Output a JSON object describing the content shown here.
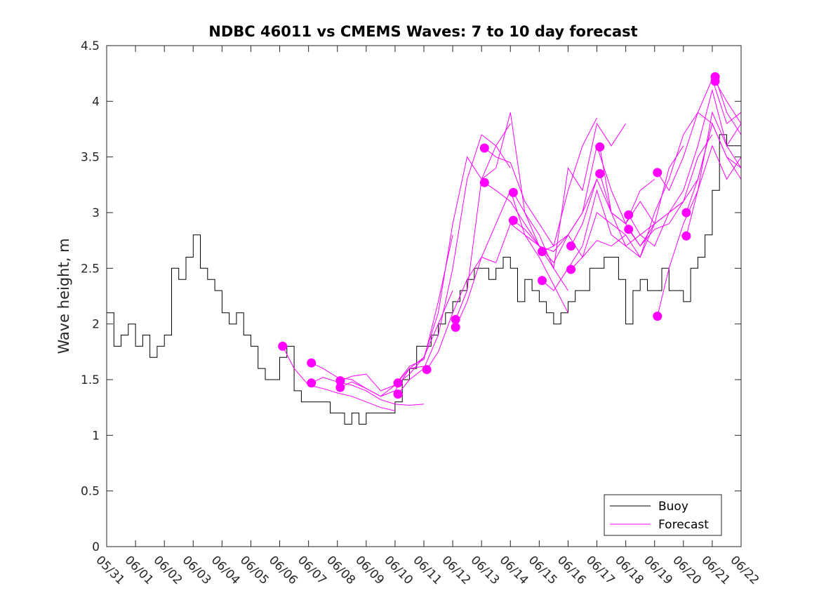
{
  "chart_data": {
    "type": "line",
    "title": "NDBC 46011 vs CMEMS Waves: 7 to 10 day forecast",
    "xlabel": "",
    "ylabel": "Wave height, m",
    "x_ticks": [
      "05/31",
      "06/01",
      "06/02",
      "06/03",
      "06/04",
      "06/05",
      "06/06",
      "06/07",
      "06/08",
      "06/09",
      "06/10",
      "06/11",
      "06/12",
      "06/13",
      "06/14",
      "06/15",
      "06/16",
      "06/17",
      "06/18",
      "06/19",
      "06/20",
      "06/21",
      "06/22"
    ],
    "y_ticks": [
      "0",
      "0.5",
      "1",
      "1.5",
      "2",
      "2.5",
      "3",
      "3.5",
      "4",
      "4.5"
    ],
    "xlim_days": [
      0,
      22
    ],
    "ylim": [
      0,
      4.5
    ],
    "grid": false,
    "legend_position": "bottom-right",
    "colors": {
      "buoy": "#000000",
      "forecast": "#ff00ff"
    },
    "legend": [
      {
        "label": "Buoy",
        "color": "#000000"
      },
      {
        "label": "Forecast",
        "color": "#ff00ff"
      }
    ],
    "series": [
      {
        "name": "Buoy",
        "x": [
          0,
          0.25,
          0.5,
          0.75,
          1.0,
          1.25,
          1.5,
          1.75,
          2.0,
          2.25,
          2.5,
          2.75,
          3.0,
          3.25,
          3.5,
          3.75,
          4.0,
          4.25,
          4.5,
          4.75,
          5.0,
          5.25,
          5.5,
          5.75,
          6.0,
          6.25,
          6.5,
          6.75,
          7.0,
          7.25,
          7.5,
          7.75,
          8.0,
          8.25,
          8.5,
          8.75,
          9.0,
          9.25,
          9.5,
          9.75,
          10.0,
          10.25,
          10.5,
          10.75,
          11.0,
          11.25,
          11.5,
          11.75,
          12.0,
          12.25,
          12.5,
          12.75,
          13.0,
          13.25,
          13.5,
          13.75,
          14.0,
          14.25,
          14.5,
          14.75,
          15.0,
          15.25,
          15.5,
          15.75,
          16.0,
          16.25,
          16.5,
          16.75,
          17.0,
          17.25,
          17.5,
          17.75,
          18.0,
          18.25,
          18.5,
          18.75,
          19.0,
          19.25,
          19.5,
          19.75,
          20.0,
          20.25,
          20.5,
          20.75,
          21.0,
          21.25,
          21.5,
          21.75,
          22.0
        ],
        "values": [
          2.1,
          1.8,
          1.9,
          2.0,
          1.8,
          1.9,
          1.7,
          1.8,
          1.9,
          2.5,
          2.4,
          2.6,
          2.8,
          2.5,
          2.4,
          2.3,
          2.1,
          2.0,
          2.1,
          1.9,
          1.8,
          1.6,
          1.5,
          1.5,
          1.7,
          1.8,
          1.4,
          1.3,
          1.3,
          1.3,
          1.3,
          1.2,
          1.2,
          1.1,
          1.2,
          1.1,
          1.2,
          1.2,
          1.2,
          1.2,
          1.3,
          1.5,
          1.6,
          1.8,
          1.8,
          1.9,
          2.0,
          2.1,
          2.2,
          2.3,
          2.4,
          2.5,
          2.5,
          2.4,
          2.5,
          2.6,
          2.5,
          2.2,
          2.4,
          2.3,
          2.2,
          2.1,
          2.0,
          2.1,
          2.2,
          2.3,
          2.3,
          2.5,
          2.5,
          2.6,
          2.6,
          2.4,
          2.0,
          2.3,
          2.4,
          2.3,
          2.3,
          2.5,
          2.3,
          2.3,
          2.2,
          2.5,
          2.6,
          2.8,
          3.2,
          3.7,
          3.6,
          3.6,
          3.4
        ]
      },
      {
        "name": "Forecast",
        "runs": [
          {
            "x": [
              6.1,
              6.5,
              7.0,
              7.5,
              8.0,
              8.5,
              9.0,
              9.5,
              10.0
            ],
            "values": [
              1.8,
              1.6,
              1.45,
              1.42,
              1.38,
              1.35,
              1.3,
              1.25,
              1.22
            ]
          },
          {
            "x": [
              7.1,
              7.5,
              8.0,
              8.5,
              9.0,
              9.5,
              10.0,
              10.5,
              11.0
            ],
            "values": [
              1.47,
              1.52,
              1.48,
              1.45,
              1.4,
              1.32,
              1.28,
              1.27,
              1.28
            ]
          },
          {
            "x": [
              7.1,
              7.5,
              8.0,
              8.5,
              9.0,
              9.5,
              10.0,
              10.5,
              11.0
            ],
            "values": [
              1.65,
              1.6,
              1.52,
              1.5,
              1.42,
              1.35,
              1.45,
              1.6,
              1.62
            ]
          },
          {
            "x": [
              8.1,
              8.5,
              9.0,
              9.5,
              10.0,
              10.5,
              11.0,
              11.5,
              12.0
            ],
            "values": [
              1.49,
              1.53,
              1.55,
              1.4,
              1.45,
              1.62,
              1.68,
              2.2,
              2.8
            ]
          },
          {
            "x": [
              8.1,
              8.5,
              9.0,
              9.5,
              10.0,
              10.5,
              11.0,
              11.5,
              12.0
            ],
            "values": [
              1.43,
              1.48,
              1.42,
              1.35,
              1.4,
              1.6,
              1.7,
              2.0,
              2.3
            ]
          },
          {
            "x": [
              10.1,
              10.5,
              11.0,
              11.5,
              12.0,
              12.5,
              13.0,
              13.5,
              14.0
            ],
            "values": [
              1.47,
              1.55,
              1.7,
              2.1,
              2.9,
              3.5,
              3.3,
              3.6,
              3.8
            ]
          },
          {
            "x": [
              10.1,
              10.5,
              11.0,
              11.5,
              12.0,
              12.5,
              13.0,
              13.5,
              14.0
            ],
            "values": [
              1.37,
              1.5,
              1.6,
              1.9,
              2.5,
              3.3,
              3.7,
              3.6,
              3.4
            ]
          },
          {
            "x": [
              11.1,
              11.5,
              12.0,
              12.5,
              13.0,
              13.5,
              14.0,
              14.5,
              15.0
            ],
            "values": [
              1.59,
              1.75,
              2.1,
              2.4,
              2.6,
              2.55,
              2.9,
              2.8,
              2.7
            ]
          },
          {
            "x": [
              12.1,
              12.5,
              13.0,
              13.5,
              14.0,
              14.5,
              15.0,
              15.5,
              16.0
            ],
            "values": [
              2.04,
              2.3,
              3.3,
              3.4,
              3.9,
              3.0,
              2.7,
              2.5,
              2.3
            ]
          },
          {
            "x": [
              12.1,
              12.5,
              13.0,
              13.5,
              14.0,
              14.5,
              15.0,
              15.5,
              16.0
            ],
            "values": [
              1.97,
              2.2,
              2.6,
              2.9,
              3.2,
              2.8,
              2.6,
              2.35,
              2.1
            ]
          },
          {
            "x": [
              13.1,
              13.5,
              14.0,
              14.5,
              15.0,
              15.5,
              16.0,
              16.5,
              17.0
            ],
            "values": [
              3.58,
              3.5,
              3.45,
              3.1,
              2.9,
              2.7,
              3.2,
              3.6,
              3.85
            ]
          },
          {
            "x": [
              13.1,
              13.5,
              14.0,
              14.5,
              15.0,
              15.5,
              16.0,
              16.5,
              17.0
            ],
            "values": [
              3.27,
              3.2,
              3.1,
              2.9,
              2.7,
              2.55,
              2.8,
              3.0,
              3.3
            ]
          },
          {
            "x": [
              14.1,
              14.5,
              15.0,
              15.5,
              16.0,
              16.5,
              17.0,
              17.5,
              18.0
            ],
            "values": [
              3.18,
              3.0,
              2.8,
              2.5,
              3.4,
              3.2,
              3.8,
              3.6,
              3.8
            ]
          },
          {
            "x": [
              14.1,
              14.5,
              15.0,
              15.5,
              16.0,
              16.5,
              17.0,
              17.5,
              18.0
            ],
            "values": [
              2.93,
              2.85,
              2.7,
              2.65,
              2.8,
              2.6,
              3.0,
              2.9,
              2.8
            ]
          },
          {
            "x": [
              15.1,
              15.5,
              16.0,
              16.5,
              17.0,
              17.5,
              18.0,
              18.5,
              19.0
            ],
            "values": [
              2.65,
              2.7,
              2.8,
              3.0,
              3.6,
              3.2,
              2.9,
              3.2,
              3.3
            ]
          },
          {
            "x": [
              15.1,
              15.5,
              16.0,
              16.5,
              17.0,
              17.5,
              18.0,
              18.5,
              19.0
            ],
            "values": [
              2.39,
              2.3,
              2.5,
              2.7,
              3.2,
              2.8,
              2.7,
              2.8,
              2.9
            ]
          },
          {
            "x": [
              16.1,
              16.5,
              17.0,
              17.5,
              18.0,
              18.5,
              19.0,
              19.5,
              20.0
            ],
            "values": [
              2.7,
              2.9,
              3.3,
              3.0,
              2.9,
              3.1,
              2.9,
              3.4,
              3.6
            ]
          },
          {
            "x": [
              16.1,
              16.5,
              17.0,
              17.5,
              18.0,
              18.5,
              19.0,
              19.5,
              20.0
            ],
            "values": [
              2.49,
              2.6,
              2.75,
              2.7,
              2.8,
              2.6,
              2.9,
              3.0,
              3.1
            ]
          },
          {
            "x": [
              17.1,
              17.5,
              18.0,
              18.5,
              19.0,
              19.5,
              20.0,
              20.5,
              21.0
            ],
            "values": [
              3.59,
              3.0,
              2.7,
              2.6,
              3.0,
              3.3,
              3.7,
              3.9,
              3.8
            ]
          },
          {
            "x": [
              17.1,
              17.5,
              18.0,
              18.5,
              19.0,
              19.5,
              20.0,
              20.5,
              21.0
            ],
            "values": [
              3.35,
              3.0,
              2.9,
              2.7,
              2.9,
              3.0,
              3.1,
              3.5,
              3.7
            ]
          },
          {
            "x": [
              18.1,
              18.5,
              19.0,
              19.5,
              20.0,
              20.5,
              21.0,
              21.5,
              22.0
            ],
            "values": [
              2.98,
              2.8,
              2.7,
              3.0,
              3.2,
              3.6,
              4.1,
              3.6,
              3.8
            ]
          },
          {
            "x": [
              18.1,
              18.5,
              19.0,
              19.5,
              20.0,
              20.5,
              21.0,
              21.5,
              22.0
            ],
            "values": [
              2.85,
              2.7,
              2.85,
              2.9,
              3.1,
              3.3,
              3.8,
              3.5,
              3.3
            ]
          },
          {
            "x": [
              19.1,
              19.5,
              20.0,
              20.5,
              21.0,
              21.5,
              22.0
            ],
            "values": [
              3.36,
              3.2,
              3.5,
              3.9,
              4.2,
              3.8,
              3.9
            ]
          },
          {
            "x": [
              19.1,
              19.5,
              20.0,
              20.5,
              21.0,
              21.5,
              22.0
            ],
            "values": [
              2.07,
              2.5,
              2.9,
              3.2,
              3.9,
              3.6,
              3.4
            ]
          },
          {
            "x": [
              20.1,
              20.5,
              21.0,
              21.5,
              22.0
            ],
            "values": [
              3.0,
              3.3,
              3.8,
              3.5,
              3.4
            ]
          },
          {
            "x": [
              20.1,
              20.5,
              21.0,
              21.5,
              22.0
            ],
            "values": [
              2.79,
              3.2,
              3.6,
              3.3,
              3.5
            ]
          },
          {
            "x": [
              21.1,
              21.5,
              22.0
            ],
            "values": [
              4.22,
              3.9,
              3.7
            ]
          },
          {
            "x": [
              21.1,
              21.5,
              22.0
            ],
            "values": [
              4.18,
              4.0,
              3.8
            ]
          }
        ]
      }
    ]
  }
}
